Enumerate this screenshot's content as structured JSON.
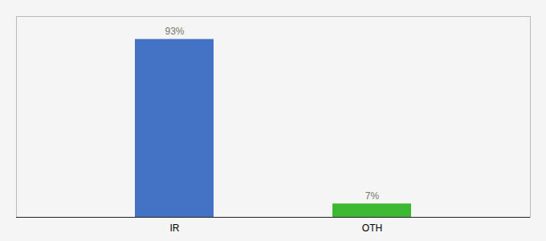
{
  "chart_data": {
    "type": "bar",
    "categories": [
      "IR",
      "OTH"
    ],
    "values": [
      93,
      7
    ],
    "value_labels": [
      "93%",
      "7%"
    ],
    "colors": [
      "#4472c4",
      "#3cb832"
    ],
    "ylim": [
      0,
      105
    ],
    "data_labels": true,
    "tick_labels": "x"
  }
}
